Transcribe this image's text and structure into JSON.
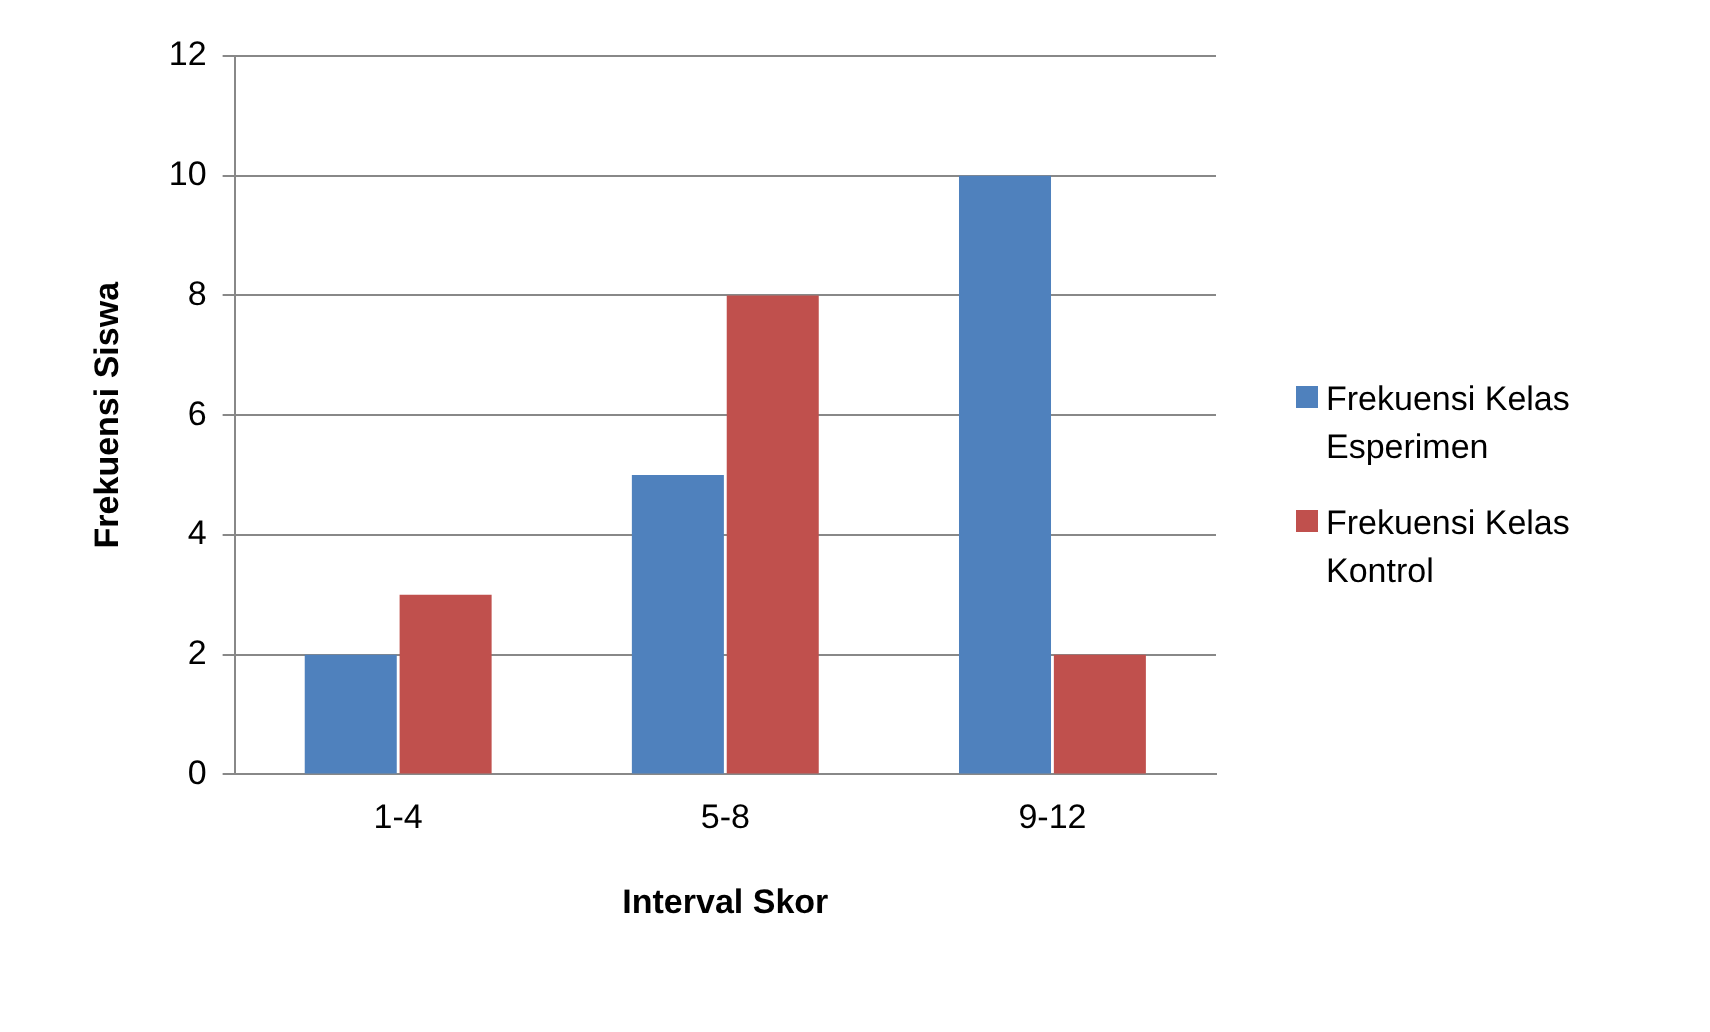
{
  "chart_data": {
    "type": "bar",
    "xlabel": "Interval Skor",
    "ylabel": "Frekuensi Siswa",
    "categories": [
      "1-4",
      "5-8",
      "9-12"
    ],
    "series": [
      {
        "name": "Frekuensi Kelas Esperimen",
        "color": "#4f81bd",
        "values": [
          2,
          5,
          10
        ]
      },
      {
        "name": "Frekuensi Kelas Kontrol",
        "color": "#c0504d",
        "values": [
          3,
          8,
          2
        ]
      }
    ],
    "ylim": [
      0,
      12
    ],
    "yticks": [
      0,
      2,
      4,
      6,
      8,
      10,
      12
    ],
    "grid": "y",
    "legend": "right"
  }
}
